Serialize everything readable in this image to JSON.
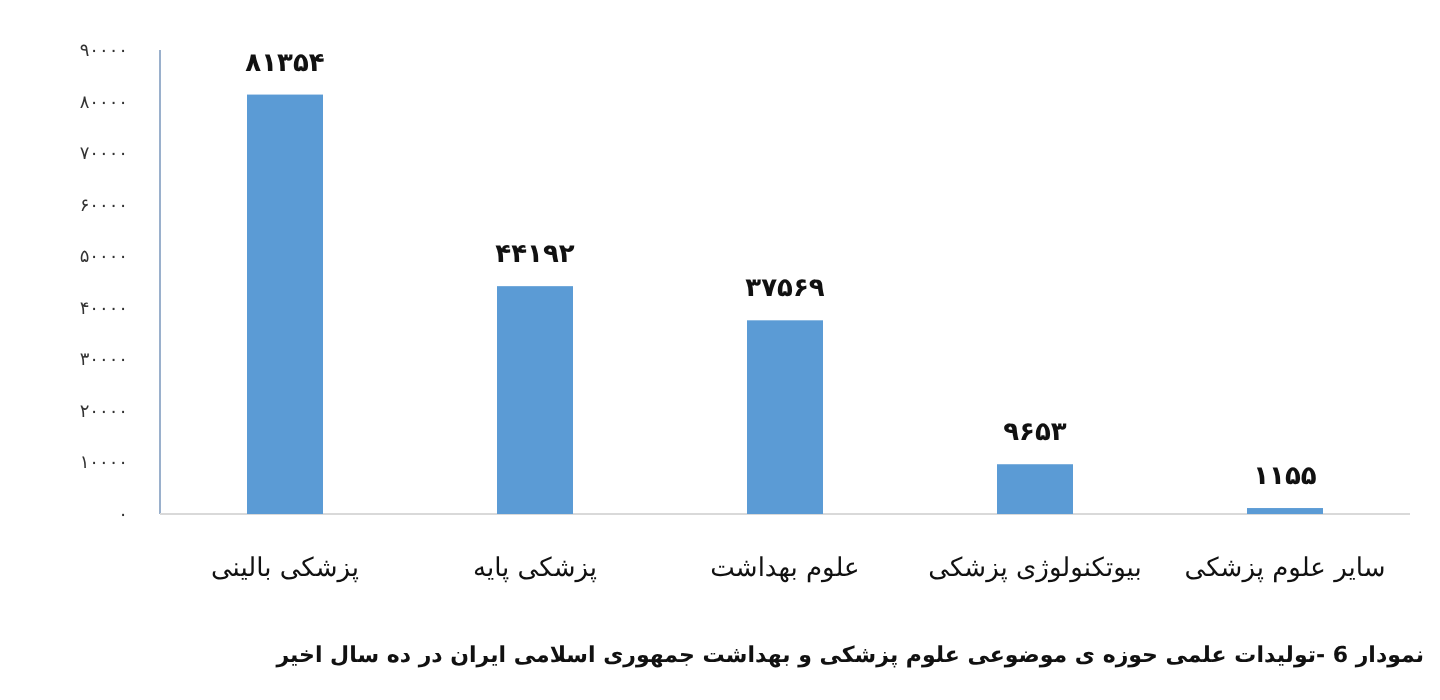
{
  "chart_data": {
    "type": "bar",
    "categories": [
      "پزشکی بالینی",
      "پزشکی پایه",
      "علوم بهداشت",
      "بیوتکنولوژی پزشکی",
      "سایر علوم پزشکی"
    ],
    "values": [
      81354,
      44192,
      37569,
      9653,
      1155
    ],
    "value_labels": [
      "۸۱۳۵۴",
      "۴۴۱۹۲",
      "۳۷۵۶۹",
      "۹۶۵۳",
      "۱۱۵۵"
    ],
    "color": "#5b9bd5",
    "ylim": [
      0,
      90000
    ],
    "yticks": [
      {
        "value": 0,
        "label": "۰"
      },
      {
        "value": 10000,
        "label": "۱۰۰۰۰"
      },
      {
        "value": 20000,
        "label": "۲۰۰۰۰"
      },
      {
        "value": 30000,
        "label": "۳۰۰۰۰"
      },
      {
        "value": 40000,
        "label": "۴۰۰۰۰"
      },
      {
        "value": 50000,
        "label": "۵۰۰۰۰"
      },
      {
        "value": 60000,
        "label": "۶۰۰۰۰"
      },
      {
        "value": 70000,
        "label": "۷۰۰۰۰"
      },
      {
        "value": 80000,
        "label": "۸۰۰۰۰"
      },
      {
        "value": 90000,
        "label": "۹۰۰۰۰"
      }
    ],
    "annotations": [
      "نمودار 6 -تولیدات علمی حوزه ی موضوعی علوم پزشکی و بهداشت جمهوری اسلامی ایران در ده سال اخیر"
    ]
  }
}
